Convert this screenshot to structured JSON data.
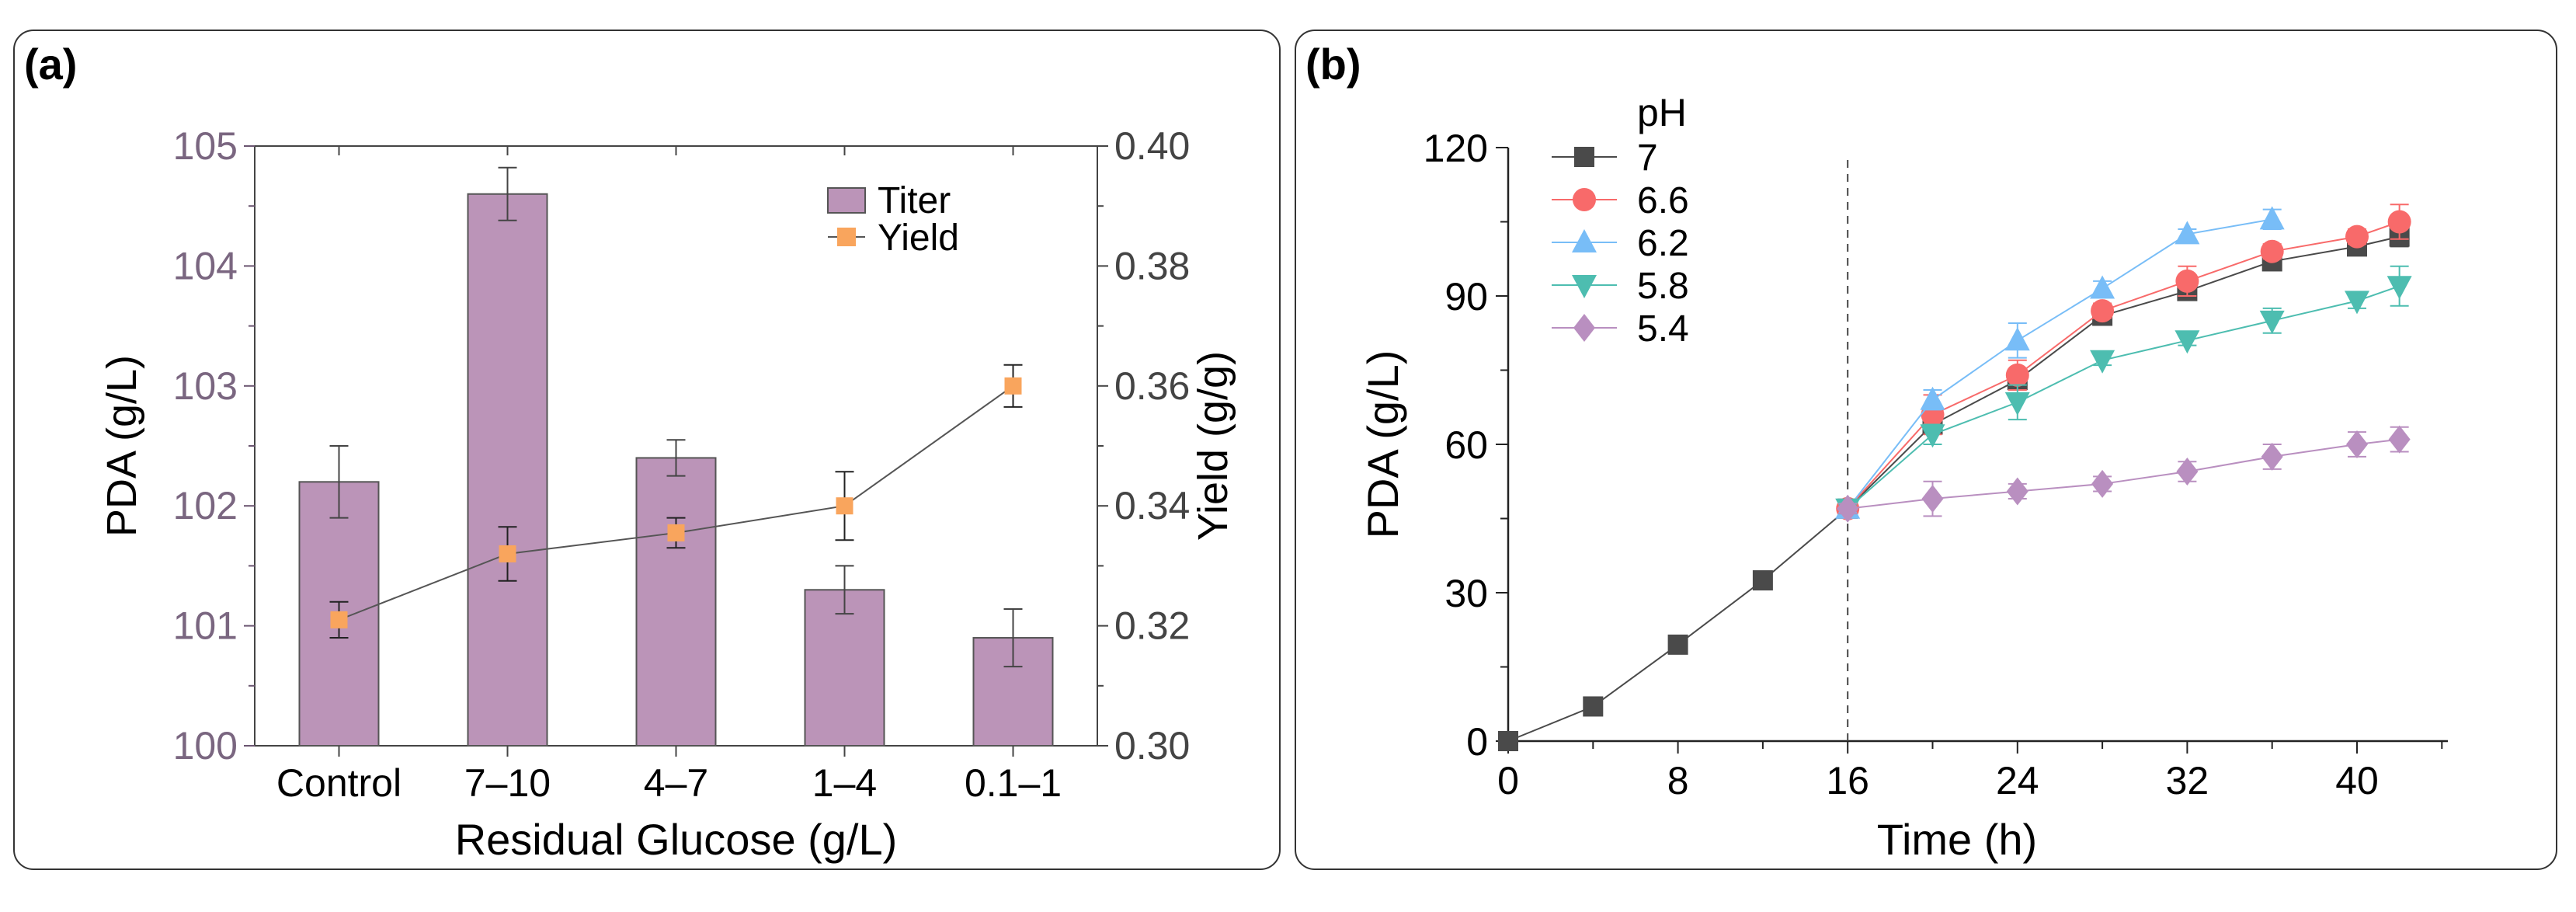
{
  "panels": {
    "a_label": "(a)",
    "b_label": "(b)"
  },
  "chart_data": [
    {
      "type": "bar",
      "title": "",
      "xlabel": "Residual Glucose (g/L)",
      "ylabel": "PDA (g/L)",
      "y2label": "Yield (g/g)",
      "categories": [
        "Control",
        "7–10",
        "4–7",
        "1–4",
        "0.1–1"
      ],
      "ylim": [
        100,
        105
      ],
      "yticks": [
        "100",
        "101",
        "102",
        "103",
        "104",
        "105"
      ],
      "y2lim": [
        0.3,
        0.4
      ],
      "y2ticks": [
        "0.30",
        "0.32",
        "0.34",
        "0.36",
        "0.38",
        "0.40"
      ],
      "legend_position": "top-right",
      "series": [
        {
          "name": "Titer",
          "kind": "bar",
          "color": "#bb94b8",
          "axis": "left",
          "values": [
            102.2,
            104.6,
            102.4,
            101.3,
            100.9
          ],
          "errors": [
            0.3,
            0.22,
            0.15,
            0.2,
            0.24
          ]
        },
        {
          "name": "Yield",
          "kind": "line",
          "color": "#f9a55d",
          "axis": "right",
          "values": [
            0.321,
            0.332,
            0.3355,
            0.34,
            0.36
          ],
          "errors": [
            0.003,
            0.0045,
            0.0025,
            0.0057,
            0.0035
          ]
        }
      ]
    },
    {
      "type": "line",
      "title": "",
      "xlabel": "Time (h)",
      "ylabel": "PDA (g/L)",
      "xlim": [
        0,
        44
      ],
      "ylim": [
        0,
        120
      ],
      "xticks": [
        "0",
        "8",
        "16",
        "24",
        "32",
        "40"
      ],
      "yticks": [
        "0",
        "30",
        "60",
        "90",
        "120"
      ],
      "legend_title": "pH",
      "legend_position": "top-left",
      "vline_x": 16,
      "series": [
        {
          "name": "7",
          "marker": "square",
          "color": "#4a4a4a",
          "x": [
            0,
            4,
            8,
            12,
            16,
            20,
            24,
            28,
            32,
            36,
            40,
            42
          ],
          "y": [
            0,
            7,
            19.5,
            32.5,
            47,
            64,
            73,
            86,
            91,
            97,
            100,
            102
          ],
          "err": [
            0,
            0,
            0,
            0,
            1,
            1.5,
            1.5,
            1,
            1.5,
            1.5,
            1.5,
            2
          ]
        },
        {
          "name": "6.6",
          "marker": "circle",
          "color": "#f86a6a",
          "x": [
            16,
            20,
            24,
            28,
            32,
            36,
            40,
            42
          ],
          "y": [
            47,
            66,
            74,
            87,
            93,
            99,
            102,
            105
          ],
          "err": [
            1,
            4,
            3,
            1.5,
            3,
            1.5,
            1.5,
            3.5
          ]
        },
        {
          "name": "6.2",
          "marker": "triangle-up",
          "color": "#78bdf7",
          "x": [
            16,
            20,
            24,
            28,
            32,
            36
          ],
          "y": [
            47,
            69,
            81,
            91.5,
            102.5,
            105.5
          ],
          "err": [
            1,
            2,
            3.5,
            1.5,
            1,
            2
          ]
        },
        {
          "name": "5.8",
          "marker": "triangle-down",
          "color": "#4dbdb0",
          "x": [
            16,
            20,
            24,
            28,
            32,
            36,
            40,
            42
          ],
          "y": [
            47,
            62,
            68.5,
            77,
            81,
            85,
            89,
            92
          ],
          "err": [
            1,
            2,
            3.5,
            1,
            1,
            2.5,
            1.5,
            4
          ]
        },
        {
          "name": "5.4",
          "marker": "diamond",
          "color": "#b98fc0",
          "x": [
            16,
            20,
            24,
            28,
            32,
            36,
            40,
            42
          ],
          "y": [
            47,
            49,
            50.5,
            52,
            54.5,
            57.5,
            60,
            61
          ],
          "err": [
            1,
            3.5,
            1.5,
            1.5,
            2,
            2.5,
            2.5,
            2.5
          ]
        }
      ]
    }
  ]
}
